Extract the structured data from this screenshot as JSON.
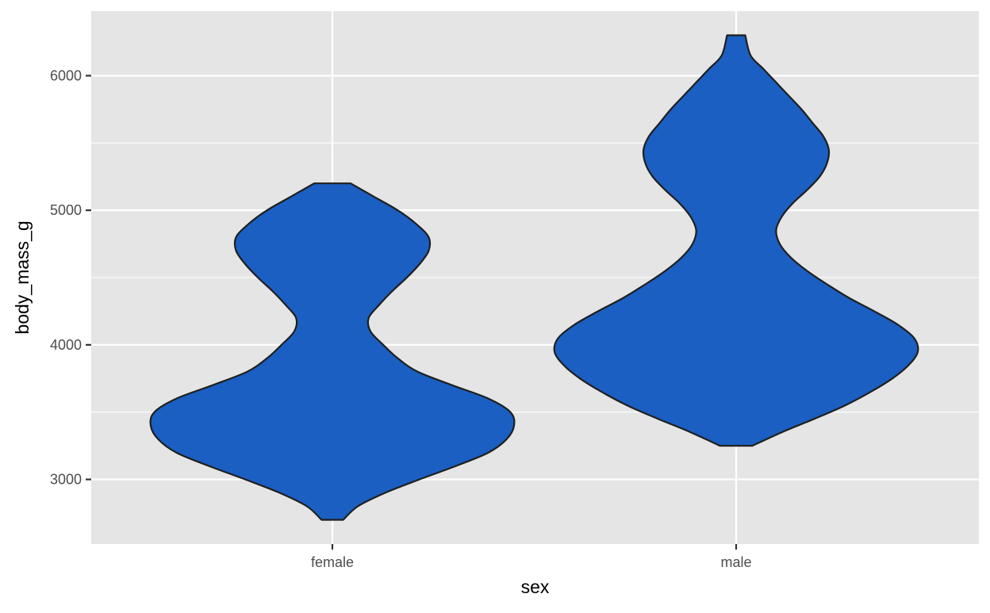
{
  "chart_data": {
    "type": "violin",
    "title": "",
    "xlabel": "sex",
    "ylabel": "body_mass_g",
    "categories": [
      "female",
      "male"
    ],
    "ylim": [
      2520,
      6480
    ],
    "yticks": [
      3000,
      4000,
      5000,
      6000
    ],
    "grid": true,
    "legend": "none",
    "colors": {
      "panel_background": "#e5e5e5",
      "grid_line": "#ffffff",
      "violin_fill": "#1a5fc1",
      "violin_outline": "#1f1f1f",
      "tick_label": "#4d4d4d",
      "tick_mark": "#333333",
      "axis_title": "#000000"
    },
    "violins": [
      {
        "category": "female",
        "min": 2700,
        "max": 5200,
        "density_profile": [
          [
            2700,
            0.06
          ],
          [
            2800,
            0.14
          ],
          [
            2900,
            0.29
          ],
          [
            3000,
            0.48
          ],
          [
            3100,
            0.68
          ],
          [
            3200,
            0.86
          ],
          [
            3300,
            0.96
          ],
          [
            3400,
            1.0
          ],
          [
            3500,
            0.98
          ],
          [
            3600,
            0.86
          ],
          [
            3700,
            0.66
          ],
          [
            3800,
            0.47
          ],
          [
            3900,
            0.36
          ],
          [
            4000,
            0.28
          ],
          [
            4100,
            0.21
          ],
          [
            4200,
            0.2
          ],
          [
            4300,
            0.26
          ],
          [
            4400,
            0.33
          ],
          [
            4500,
            0.41
          ],
          [
            4600,
            0.48
          ],
          [
            4700,
            0.53
          ],
          [
            4800,
            0.53
          ],
          [
            4900,
            0.46
          ],
          [
            5000,
            0.36
          ],
          [
            5100,
            0.23
          ],
          [
            5200,
            0.1
          ]
        ]
      },
      {
        "category": "male",
        "min": 3250,
        "max": 6300,
        "density_profile": [
          [
            3250,
            0.09
          ],
          [
            3350,
            0.25
          ],
          [
            3450,
            0.43
          ],
          [
            3550,
            0.6
          ],
          [
            3650,
            0.74
          ],
          [
            3750,
            0.86
          ],
          [
            3850,
            0.95
          ],
          [
            3950,
            1.0
          ],
          [
            4050,
            0.98
          ],
          [
            4150,
            0.89
          ],
          [
            4250,
            0.76
          ],
          [
            4350,
            0.62
          ],
          [
            4450,
            0.5
          ],
          [
            4550,
            0.39
          ],
          [
            4650,
            0.3
          ],
          [
            4750,
            0.24
          ],
          [
            4850,
            0.22
          ],
          [
            4950,
            0.25
          ],
          [
            5050,
            0.31
          ],
          [
            5150,
            0.39
          ],
          [
            5250,
            0.46
          ],
          [
            5350,
            0.5
          ],
          [
            5450,
            0.51
          ],
          [
            5550,
            0.48
          ],
          [
            5650,
            0.42
          ],
          [
            5750,
            0.36
          ],
          [
            5850,
            0.29
          ],
          [
            5950,
            0.22
          ],
          [
            6050,
            0.15
          ],
          [
            6150,
            0.08
          ],
          [
            6300,
            0.05
          ]
        ]
      }
    ]
  }
}
